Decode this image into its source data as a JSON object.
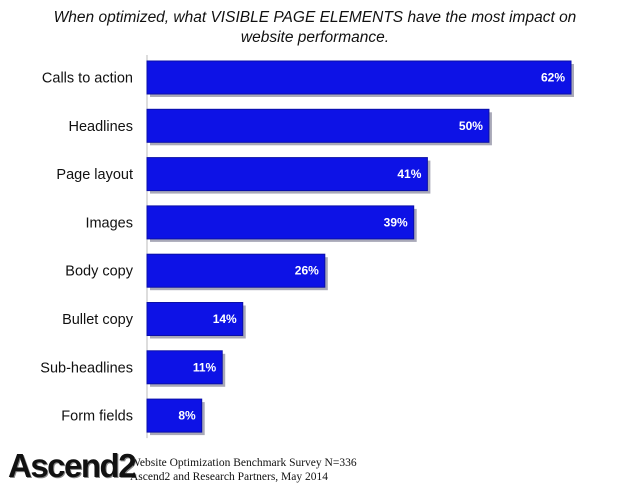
{
  "chart_data": {
    "type": "bar",
    "orientation": "horizontal",
    "title_lines": [
      "When optimized, what VISIBLE PAGE ELEMENTS have the most impact on",
      "website performance."
    ],
    "categories": [
      "Calls to action",
      "Headlines",
      "Page layout",
      "Images",
      "Body copy",
      "Bullet copy",
      "Sub-headlines",
      "Form fields"
    ],
    "values": [
      62,
      50,
      41,
      39,
      26,
      14,
      11,
      8
    ],
    "value_labels": [
      "62%",
      "50%",
      "41%",
      "39%",
      "26%",
      "14%",
      "11%",
      "8%"
    ],
    "unit": "%",
    "xlim": [
      0,
      62
    ],
    "grid": false,
    "bar_color": "#0d12e6"
  },
  "footer": {
    "logo_text": "Ascend2",
    "source_lines": [
      "Website Optimization Benchmark Survey N=336",
      "Ascend2 and Research Partners, May 2014"
    ]
  }
}
